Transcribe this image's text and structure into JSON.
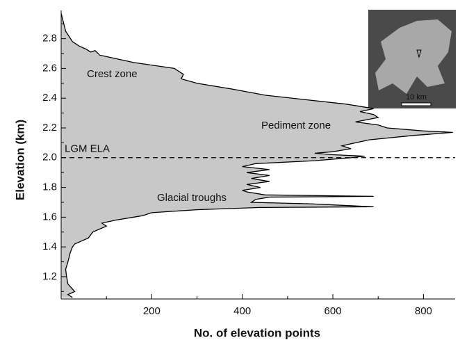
{
  "chart_data": {
    "type": "area",
    "orientation": "horizontal",
    "xlabel": "No. of elevation points",
    "ylabel": "Elevation (km)",
    "color": "#c8c8c8",
    "line_color": "#000000",
    "xlim": [
      0,
      870
    ],
    "ylim": [
      1.05,
      2.99
    ],
    "xticks": [
      200,
      400,
      600,
      800
    ],
    "xminorticks": [
      100,
      300,
      500,
      700
    ],
    "yticks": [
      1.2,
      1.4,
      1.6,
      1.8,
      {
        "value": 2,
        "label": "2.0"
      },
      2.2,
      2.4,
      2.6,
      2.8
    ],
    "yminorticks": [
      1.1,
      1.3,
      1.5,
      1.7,
      1.9,
      2.1,
      2.3,
      2.5,
      2.7,
      2.9
    ],
    "reference_line": {
      "value": 2,
      "label": "LGM ELA"
    },
    "annotations": [
      "Crest zone",
      "Pediment zone",
      "Glacial troughs"
    ],
    "inset_scale_label": "10 km",
    "y": [
      1.06,
      1.08,
      1.1,
      1.15,
      1.2,
      1.25,
      1.3,
      1.36,
      1.4,
      1.42,
      1.46,
      1.5,
      1.54,
      1.56,
      1.58,
      1.61,
      1.63,
      1.65,
      1.665,
      1.67,
      1.69,
      1.7,
      1.72,
      1.735,
      1.74,
      1.75,
      1.77,
      1.78,
      1.8,
      1.82,
      1.84,
      1.86,
      1.88,
      1.9,
      1.92,
      1.94,
      1.96,
      1.98,
      2.0,
      2.01,
      2.02,
      2.03,
      2.04,
      2.06,
      2.08,
      2.1,
      2.12,
      2.15,
      2.17,
      2.18,
      2.2,
      2.22,
      2.24,
      2.27,
      2.29,
      2.31,
      2.33,
      2.36,
      2.39,
      2.42,
      2.46,
      2.5,
      2.53,
      2.56,
      2.6,
      2.62,
      2.64,
      2.67,
      2.69,
      2.72,
      2.71,
      2.73,
      2.75,
      2.78,
      2.85,
      2.97
    ],
    "values": [
      25,
      15,
      30,
      15,
      12,
      10,
      15,
      20,
      25,
      30,
      60,
      70,
      100,
      90,
      120,
      180,
      200,
      300,
      440,
      690,
      550,
      420,
      430,
      460,
      690,
      450,
      410,
      400,
      440,
      410,
      460,
      420,
      460,
      410,
      460,
      400,
      430,
      560,
      640,
      670,
      600,
      560,
      600,
      640,
      620,
      650,
      680,
      780,
      865,
      800,
      720,
      700,
      650,
      700,
      690,
      660,
      690,
      630,
      540,
      450,
      380,
      300,
      265,
      270,
      250,
      205,
      160,
      115,
      85,
      75,
      65,
      55,
      40,
      25,
      10,
      0
    ]
  }
}
